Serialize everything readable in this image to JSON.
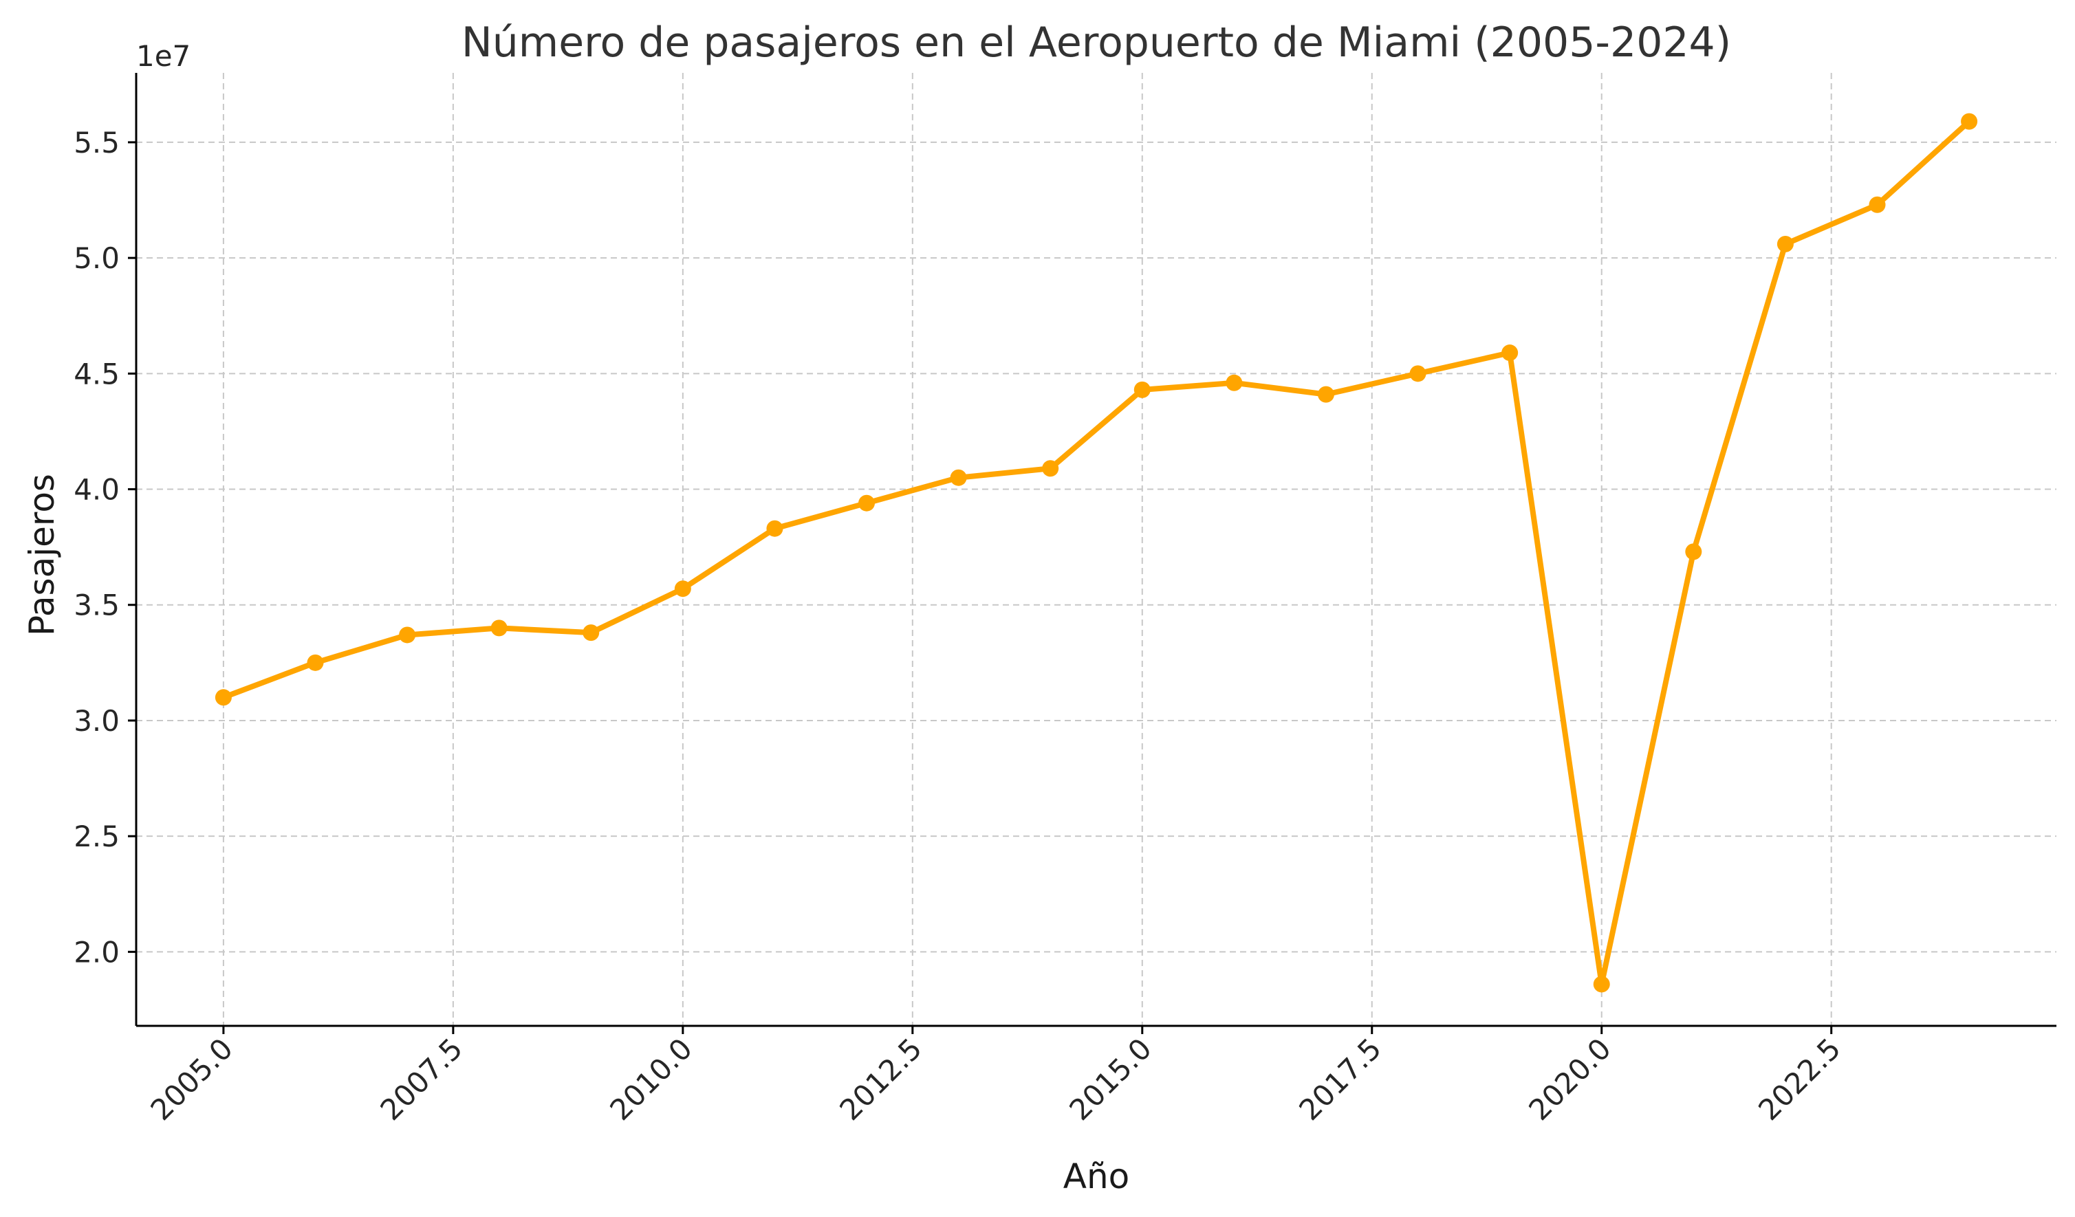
{
  "chart_data": {
    "type": "line",
    "title": "Número de pasajeros en el Aeropuerto de Miami (2005-2024)",
    "xlabel": "Año",
    "ylabel": "Pasajeros",
    "y_offset_label": "1e7",
    "xlim": [
      2004.05,
      2024.95
    ],
    "ylim": [
      1.68,
      5.8
    ],
    "x_ticks": [
      2005.0,
      2007.5,
      2010.0,
      2012.5,
      2015.0,
      2017.5,
      2020.0,
      2022.5
    ],
    "x_tick_labels": [
      "2005.0",
      "2007.5",
      "2010.0",
      "2012.5",
      "2015.0",
      "2017.5",
      "2020.0",
      "2022.5"
    ],
    "y_ticks": [
      2.0,
      2.5,
      3.0,
      3.5,
      4.0,
      4.5,
      5.0,
      5.5
    ],
    "y_tick_labels": [
      "2.0",
      "2.5",
      "3.0",
      "3.5",
      "4.0",
      "4.5",
      "5.0",
      "5.5"
    ],
    "grid": true,
    "color": "#FFA500",
    "series": [
      {
        "x": [
          2005,
          2006,
          2007,
          2008,
          2009,
          2010,
          2011,
          2012,
          2013,
          2014,
          2015,
          2016,
          2017,
          2018,
          2019,
          2020,
          2021,
          2022,
          2023,
          2024
        ],
        "values": [
          3.1,
          3.25,
          3.37,
          3.4,
          3.38,
          3.57,
          3.83,
          3.94,
          4.05,
          4.09,
          4.43,
          4.46,
          4.41,
          4.5,
          4.59,
          1.86,
          3.73,
          5.06,
          5.23,
          5.59
        ]
      }
    ]
  }
}
